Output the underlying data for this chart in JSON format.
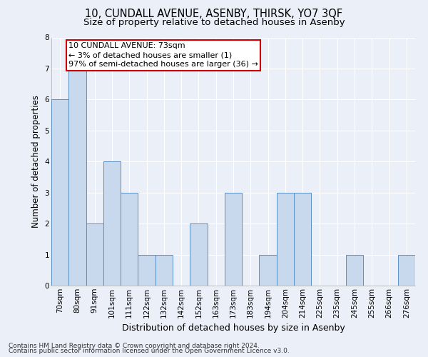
{
  "title": "10, CUNDALL AVENUE, ASENBY, THIRSK, YO7 3QF",
  "subtitle": "Size of property relative to detached houses in Asenby",
  "xlabel": "Distribution of detached houses by size in Asenby",
  "ylabel": "Number of detached properties",
  "categories": [
    "70sqm",
    "80sqm",
    "91sqm",
    "101sqm",
    "111sqm",
    "122sqm",
    "132sqm",
    "142sqm",
    "152sqm",
    "163sqm",
    "173sqm",
    "183sqm",
    "194sqm",
    "204sqm",
    "214sqm",
    "225sqm",
    "235sqm",
    "245sqm",
    "255sqm",
    "266sqm",
    "276sqm"
  ],
  "values": [
    6,
    7,
    2,
    4,
    3,
    1,
    1,
    0,
    2,
    0,
    3,
    0,
    1,
    3,
    3,
    0,
    0,
    1,
    0,
    0,
    1
  ],
  "bar_color": "#c8d9ed",
  "bar_edge_color": "#5b8ec4",
  "annotation_text": "10 CUNDALL AVENUE: 73sqm\n← 3% of detached houses are smaller (1)\n97% of semi-detached houses are larger (36) →",
  "annotation_box_facecolor": "#ffffff",
  "annotation_box_edgecolor": "#cc0000",
  "footnote1": "Contains HM Land Registry data © Crown copyright and database right 2024.",
  "footnote2": "Contains public sector information licensed under the Open Government Licence v3.0.",
  "bg_color": "#eaeff8",
  "grid_color": "#ffffff",
  "ylim": [
    0,
    8
  ],
  "yticks": [
    0,
    1,
    2,
    3,
    4,
    5,
    6,
    7,
    8
  ],
  "title_fontsize": 10.5,
  "subtitle_fontsize": 9.5,
  "ylabel_fontsize": 8.5,
  "xlabel_fontsize": 9,
  "tick_fontsize": 7.5,
  "annotation_fontsize": 8,
  "footnote_fontsize": 6.5
}
